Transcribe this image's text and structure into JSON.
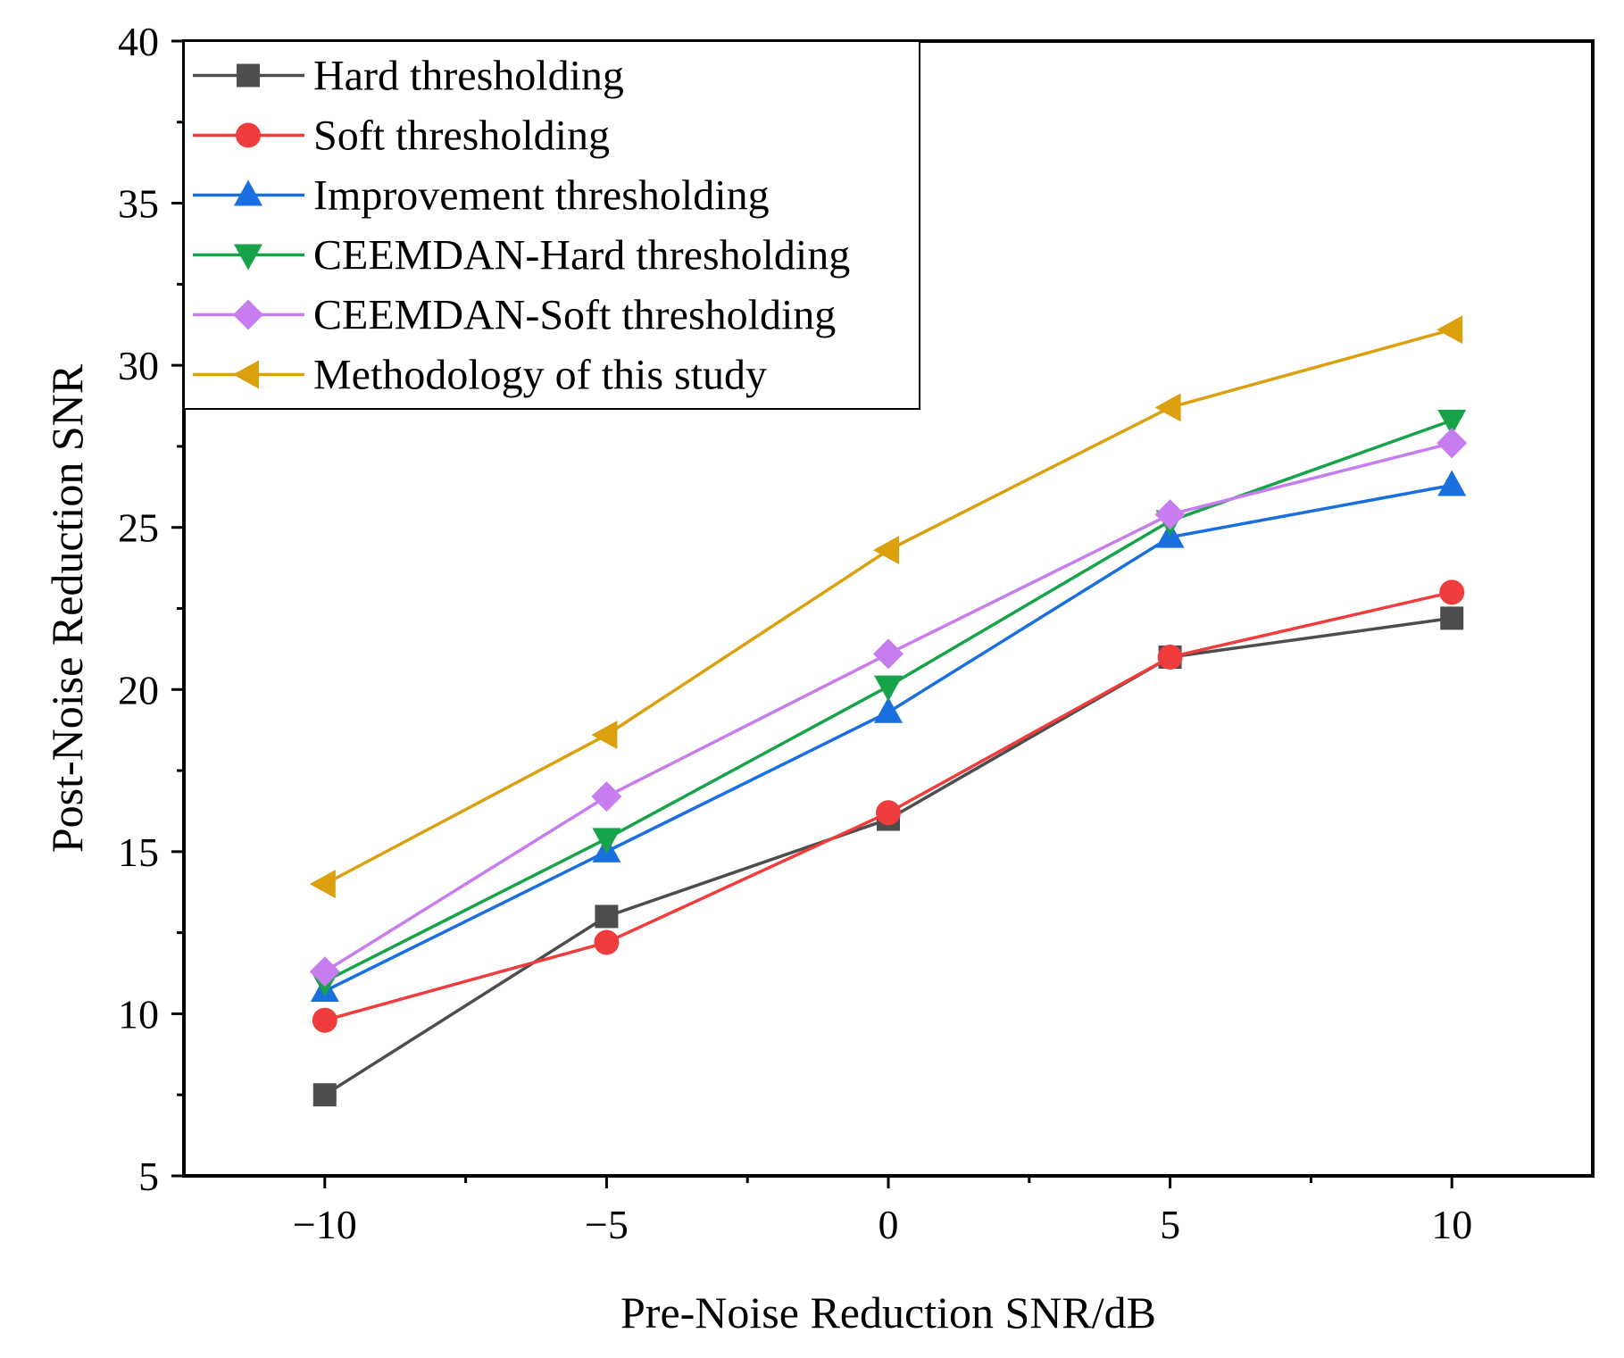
{
  "chart_data": {
    "type": "line",
    "title": "",
    "xlabel": "Pre-Noise Reduction SNR/dB",
    "ylabel": "Post-Noise Reduction SNR",
    "x": [
      -10,
      -5,
      0,
      5,
      10
    ],
    "xlim": [
      -12.5,
      12.5
    ],
    "ylim": [
      5,
      40
    ],
    "xticks": [
      -10,
      -5,
      0,
      5,
      10
    ],
    "xtick_labels": [
      "−10",
      "−5",
      "0",
      "5",
      "10"
    ],
    "yticks": [
      5,
      10,
      15,
      20,
      25,
      30,
      35,
      40
    ],
    "ytick_labels": [
      "5",
      "10",
      "15",
      "20",
      "25",
      "30",
      "35",
      "40"
    ],
    "grid": false,
    "legend_position": "top-left",
    "series": [
      {
        "name": "Hard thresholding",
        "color": "#4d4d4d",
        "marker": "square",
        "values": [
          7.5,
          13.0,
          16.0,
          21.0,
          22.2
        ]
      },
      {
        "name": "Soft thresholding",
        "color": "#f03c3c",
        "marker": "circle",
        "values": [
          9.8,
          12.2,
          16.2,
          21.0,
          23.0
        ]
      },
      {
        "name": "Improvement thresholding",
        "color": "#1a6fdf",
        "marker": "triangle-up",
        "values": [
          10.7,
          15.0,
          19.3,
          24.7,
          26.3
        ]
      },
      {
        "name": "CEEMDAN-Hard thresholding",
        "color": "#16a34a",
        "marker": "triangle-down",
        "values": [
          11.0,
          15.4,
          20.1,
          25.2,
          28.3
        ]
      },
      {
        "name": "CEEMDAN-Soft thresholding",
        "color": "#c77cf0",
        "marker": "diamond",
        "values": [
          11.3,
          16.7,
          21.1,
          25.4,
          27.6
        ]
      },
      {
        "name": "Methodology of this study",
        "color": "#daa00e",
        "marker": "triangle-left",
        "values": [
          14.0,
          18.6,
          24.3,
          28.7,
          31.1
        ]
      }
    ]
  }
}
